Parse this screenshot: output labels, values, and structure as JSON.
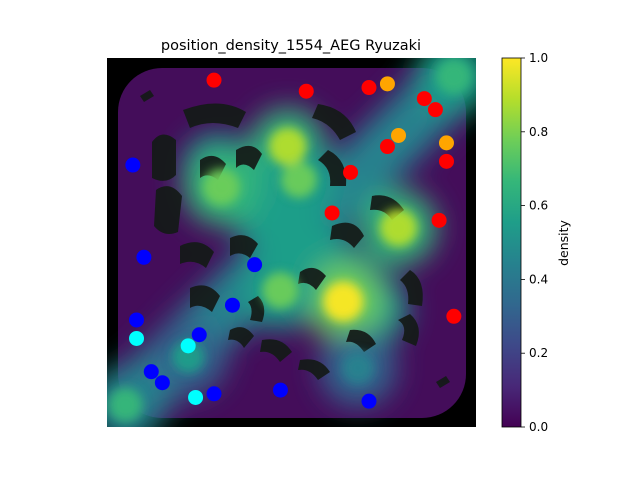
{
  "chart_data": {
    "type": "heatmap",
    "title": "position_density_1554_AEG Ryuzaki",
    "colorbar": {
      "label": "density",
      "range": [
        0,
        1
      ],
      "ticks": [
        "0.0",
        "0.2",
        "0.4",
        "0.6",
        "0.8",
        "1.0"
      ],
      "colormap": "viridis"
    },
    "x_axis_visible": false,
    "y_axis_visible": false,
    "hotspots": [
      {
        "x": 0.64,
        "y": 0.66,
        "density": 1.0
      },
      {
        "x": 0.47,
        "y": 0.63,
        "density": 0.78
      },
      {
        "x": 0.79,
        "y": 0.46,
        "density": 0.85
      },
      {
        "x": 0.49,
        "y": 0.24,
        "density": 0.88
      },
      {
        "x": 0.31,
        "y": 0.35,
        "density": 0.82
      },
      {
        "x": 0.52,
        "y": 0.33,
        "density": 0.75
      },
      {
        "x": 0.94,
        "y": 0.05,
        "density": 0.7
      },
      {
        "x": 0.05,
        "y": 0.94,
        "density": 0.62
      },
      {
        "x": 0.22,
        "y": 0.81,
        "density": 0.5
      },
      {
        "x": 0.68,
        "y": 0.84,
        "density": 0.45
      }
    ],
    "series": [
      {
        "color": "#ff0000",
        "points": [
          {
            "x": 0.29,
            "y": 0.06
          },
          {
            "x": 0.54,
            "y": 0.09
          },
          {
            "x": 0.71,
            "y": 0.08
          },
          {
            "x": 0.86,
            "y": 0.11
          },
          {
            "x": 0.89,
            "y": 0.14
          },
          {
            "x": 0.76,
            "y": 0.24
          },
          {
            "x": 0.92,
            "y": 0.28
          },
          {
            "x": 0.66,
            "y": 0.31
          },
          {
            "x": 0.61,
            "y": 0.42
          },
          {
            "x": 0.9,
            "y": 0.44
          },
          {
            "x": 0.94,
            "y": 0.7
          }
        ]
      },
      {
        "color": "#ffa500",
        "points": [
          {
            "x": 0.76,
            "y": 0.07
          },
          {
            "x": 0.79,
            "y": 0.21
          },
          {
            "x": 0.92,
            "y": 0.23
          }
        ]
      },
      {
        "color": "#0000ff",
        "points": [
          {
            "x": 0.07,
            "y": 0.29
          },
          {
            "x": 0.1,
            "y": 0.54
          },
          {
            "x": 0.4,
            "y": 0.56
          },
          {
            "x": 0.34,
            "y": 0.67
          },
          {
            "x": 0.08,
            "y": 0.71
          },
          {
            "x": 0.25,
            "y": 0.75
          },
          {
            "x": 0.12,
            "y": 0.85
          },
          {
            "x": 0.15,
            "y": 0.88
          },
          {
            "x": 0.29,
            "y": 0.91
          },
          {
            "x": 0.47,
            "y": 0.9
          },
          {
            "x": 0.71,
            "y": 0.93
          }
        ]
      },
      {
        "color": "#00ffff",
        "points": [
          {
            "x": 0.08,
            "y": 0.76
          },
          {
            "x": 0.22,
            "y": 0.78
          },
          {
            "x": 0.24,
            "y": 0.92
          }
        ]
      }
    ]
  }
}
